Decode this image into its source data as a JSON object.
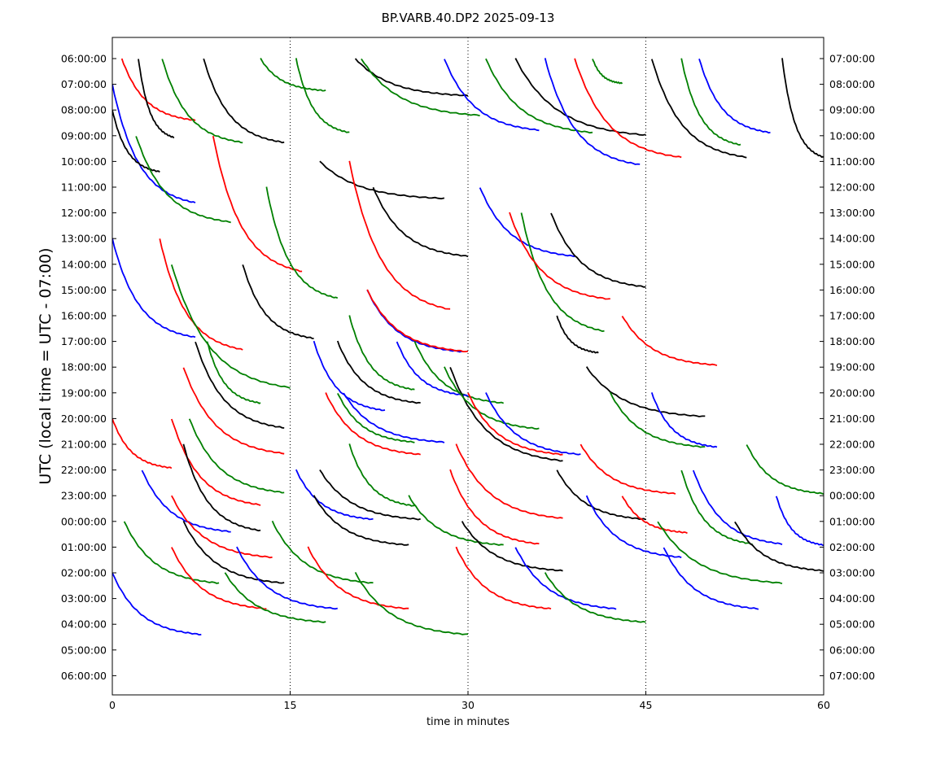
{
  "chart_data": {
    "type": "line",
    "title": "BP.VARB.40.DP2 2025-09-13",
    "xlabel": "time in minutes",
    "ylabel": "UTC (local time = UTC - 07:00)",
    "xlim": [
      0,
      60
    ],
    "xticks": [
      0,
      15,
      30,
      45,
      60
    ],
    "x_gridlines_dotted": [
      15,
      30,
      45
    ],
    "left_tick_labels": [
      "06:00:00",
      "07:00:00",
      "08:00:00",
      "09:00:00",
      "10:00:00",
      "11:00:00",
      "12:00:00",
      "13:00:00",
      "14:00:00",
      "15:00:00",
      "16:00:00",
      "17:00:00",
      "18:00:00",
      "19:00:00",
      "20:00:00",
      "21:00:00",
      "22:00:00",
      "23:00:00",
      "00:00:00",
      "01:00:00",
      "02:00:00",
      "03:00:00",
      "04:00:00",
      "05:00:00",
      "06:00:00"
    ],
    "right_tick_labels": [
      "07:00:00",
      "08:00:00",
      "09:00:00",
      "10:00:00",
      "11:00:00",
      "12:00:00",
      "13:00:00",
      "14:00:00",
      "15:00:00",
      "16:00:00",
      "17:00:00",
      "18:00:00",
      "19:00:00",
      "20:00:00",
      "21:00:00",
      "22:00:00",
      "23:00:00",
      "00:00:00",
      "01:00:00",
      "02:00:00",
      "03:00:00",
      "04:00:00",
      "05:00:00",
      "06:00:00",
      "07:00:00"
    ],
    "trace_colors": [
      "#000000",
      "#ff0000",
      "#0000ff",
      "#008000"
    ],
    "decay_segments": [
      {
        "row": 0,
        "color": "#ff0000",
        "x0": 0.8,
        "x1": 7.0,
        "drop": 2.5
      },
      {
        "row": 0,
        "color": "#000000",
        "x0": 2.2,
        "x1": 5.2,
        "drop": 3.2
      },
      {
        "row": 0,
        "color": "#008000",
        "x0": 4.2,
        "x1": 11.0,
        "drop": 3.4
      },
      {
        "row": 0,
        "color": "#000000",
        "x0": 7.7,
        "x1": 14.5,
        "drop": 3.4
      },
      {
        "row": 0,
        "color": "#008000",
        "x0": 12.5,
        "x1": 18.0,
        "drop": 1.3
      },
      {
        "row": 0,
        "color": "#008000",
        "x0": 15.5,
        "x1": 20.0,
        "drop": 3.0
      },
      {
        "row": 0,
        "color": "#000000",
        "x0": 20.5,
        "x1": 30.0,
        "drop": 1.5
      },
      {
        "row": 0,
        "color": "#008000",
        "x0": 21.0,
        "x1": 31.0,
        "drop": 2.3
      },
      {
        "row": 0,
        "color": "#0000ff",
        "x0": 28.0,
        "x1": 36.0,
        "drop": 2.9
      },
      {
        "row": 0,
        "color": "#008000",
        "x0": 31.5,
        "x1": 40.5,
        "drop": 3.0
      },
      {
        "row": 0,
        "color": "#000000",
        "x0": 34.0,
        "x1": 45.0,
        "drop": 3.1
      },
      {
        "row": 0,
        "color": "#0000ff",
        "x0": 36.5,
        "x1": 44.5,
        "drop": 4.3
      },
      {
        "row": 0,
        "color": "#ff0000",
        "x0": 39.0,
        "x1": 48.0,
        "drop": 4.0
      },
      {
        "row": 0,
        "color": "#008000",
        "x0": 40.5,
        "x1": 43.0,
        "drop": 1.0
      },
      {
        "row": 0,
        "color": "#000000",
        "x0": 45.5,
        "x1": 53.5,
        "drop": 4.0
      },
      {
        "row": 0,
        "color": "#0000ff",
        "x0": 49.5,
        "x1": 55.5,
        "drop": 3.0
      },
      {
        "row": 0,
        "color": "#008000",
        "x0": 48.0,
        "x1": 53.0,
        "drop": 3.5
      },
      {
        "row": 0,
        "color": "#000000",
        "x0": 56.5,
        "x1": 60.0,
        "drop": 4.0
      },
      {
        "row": 1,
        "color": "#0000ff",
        "x0": 0.0,
        "x1": 7.0,
        "drop": 4.8
      },
      {
        "row": 2,
        "color": "#000000",
        "x0": 0.0,
        "x1": 4.0,
        "drop": 2.5
      },
      {
        "row": 3,
        "color": "#008000",
        "x0": 2.0,
        "x1": 10.0,
        "drop": 3.5
      },
      {
        "row": 3,
        "color": "#ff0000",
        "x0": 8.5,
        "x1": 16.0,
        "drop": 5.5
      },
      {
        "row": 4,
        "color": "#000000",
        "x0": 17.5,
        "x1": 28.0,
        "drop": 1.5
      },
      {
        "row": 4,
        "color": "#ff0000",
        "x0": 20.0,
        "x1": 28.5,
        "drop": 6.0
      },
      {
        "row": 5,
        "color": "#008000",
        "x0": 13.0,
        "x1": 19.0,
        "drop": 4.5
      },
      {
        "row": 5,
        "color": "#000000",
        "x0": 22.0,
        "x1": 30.0,
        "drop": 2.8
      },
      {
        "row": 5,
        "color": "#0000ff",
        "x0": 31.0,
        "x1": 39.0,
        "drop": 2.8
      },
      {
        "row": 6,
        "color": "#000000",
        "x0": 37.0,
        "x1": 45.0,
        "drop": 3.0
      },
      {
        "row": 6,
        "color": "#008000",
        "x0": 34.5,
        "x1": 41.5,
        "drop": 4.8
      },
      {
        "row": 6,
        "color": "#ff0000",
        "x0": 33.5,
        "x1": 42.0,
        "drop": 3.5
      },
      {
        "row": 7,
        "color": "#0000ff",
        "x0": 0.0,
        "x1": 7.0,
        "drop": 4.0
      },
      {
        "row": 7,
        "color": "#ff0000",
        "x0": 4.0,
        "x1": 11.0,
        "drop": 4.5
      },
      {
        "row": 8,
        "color": "#008000",
        "x0": 5.0,
        "x1": 15.0,
        "drop": 5.0
      },
      {
        "row": 8,
        "color": "#000000",
        "x0": 11.0,
        "x1": 17.0,
        "drop": 3.0
      },
      {
        "row": 9,
        "color": "#0000ff",
        "x0": 21.5,
        "x1": 29.5,
        "drop": 2.5
      },
      {
        "row": 9,
        "color": "#ff0000",
        "x0": 21.5,
        "x1": 30.0,
        "drop": 2.5
      },
      {
        "row": 10,
        "color": "#008000",
        "x0": 20.0,
        "x1": 25.5,
        "drop": 3.0
      },
      {
        "row": 10,
        "color": "#000000",
        "x0": 37.5,
        "x1": 41.0,
        "drop": 1.5
      },
      {
        "row": 10,
        "color": "#ff0000",
        "x0": 43.0,
        "x1": 51.0,
        "drop": 2.0
      },
      {
        "row": 11,
        "color": "#000000",
        "x0": 7.0,
        "x1": 14.5,
        "drop": 3.5
      },
      {
        "row": 11,
        "color": "#008000",
        "x0": 8.0,
        "x1": 12.5,
        "drop": 2.5
      },
      {
        "row": 11,
        "color": "#0000ff",
        "x0": 17.0,
        "x1": 23.0,
        "drop": 2.8
      },
      {
        "row": 11,
        "color": "#000000",
        "x0": 19.0,
        "x1": 26.0,
        "drop": 2.5
      },
      {
        "row": 11,
        "color": "#008000",
        "x0": 25.5,
        "x1": 33.0,
        "drop": 2.5
      },
      {
        "row": 11,
        "color": "#0000ff",
        "x0": 24.0,
        "x1": 30.0,
        "drop": 2.2
      },
      {
        "row": 12,
        "color": "#ff0000",
        "x0": 6.0,
        "x1": 14.5,
        "drop": 3.5
      },
      {
        "row": 12,
        "color": "#000000",
        "x0": 28.5,
        "x1": 38.0,
        "drop": 3.8
      },
      {
        "row": 12,
        "color": "#008000",
        "x0": 28.0,
        "x1": 36.0,
        "drop": 2.5
      },
      {
        "row": 12,
        "color": "#000000",
        "x0": 40.0,
        "x1": 50.0,
        "drop": 2.0
      },
      {
        "row": 13,
        "color": "#ff0000",
        "x0": 18.0,
        "x1": 26.0,
        "drop": 2.5
      },
      {
        "row": 13,
        "color": "#0000ff",
        "x0": 19.5,
        "x1": 28.0,
        "drop": 2.0
      },
      {
        "row": 13,
        "color": "#008000",
        "x0": 19.0,
        "x1": 25.5,
        "drop": 2.0
      },
      {
        "row": 13,
        "color": "#ff0000",
        "x0": 30.0,
        "x1": 38.0,
        "drop": 2.5
      },
      {
        "row": 13,
        "color": "#0000ff",
        "x0": 31.5,
        "x1": 39.5,
        "drop": 2.5
      },
      {
        "row": 13,
        "color": "#008000",
        "x0": 42.0,
        "x1": 50.0,
        "drop": 2.2
      },
      {
        "row": 13,
        "color": "#0000ff",
        "x0": 45.5,
        "x1": 51.0,
        "drop": 2.2
      },
      {
        "row": 14,
        "color": "#ff0000",
        "x0": 0.0,
        "x1": 5.0,
        "drop": 2.0
      },
      {
        "row": 14,
        "color": "#ff0000",
        "x0": 5.0,
        "x1": 12.5,
        "drop": 3.5
      },
      {
        "row": 14,
        "color": "#008000",
        "x0": 6.5,
        "x1": 14.5,
        "drop": 3.0
      },
      {
        "row": 15,
        "color": "#000000",
        "x0": 6.0,
        "x1": 12.5,
        "drop": 3.5
      },
      {
        "row": 15,
        "color": "#008000",
        "x0": 20.0,
        "x1": 25.5,
        "drop": 2.5
      },
      {
        "row": 15,
        "color": "#ff0000",
        "x0": 29.0,
        "x1": 38.0,
        "drop": 3.0
      },
      {
        "row": 15,
        "color": "#ff0000",
        "x0": 39.5,
        "x1": 47.5,
        "drop": 2.0
      },
      {
        "row": 15,
        "color": "#008000",
        "x0": 53.5,
        "x1": 60.0,
        "drop": 2.0
      },
      {
        "row": 16,
        "color": "#0000ff",
        "x0": 2.5,
        "x1": 10.0,
        "drop": 2.5
      },
      {
        "row": 16,
        "color": "#000000",
        "x0": 17.5,
        "x1": 26.0,
        "drop": 2.0
      },
      {
        "row": 16,
        "color": "#0000ff",
        "x0": 15.5,
        "x1": 22.0,
        "drop": 2.0
      },
      {
        "row": 16,
        "color": "#ff0000",
        "x0": 28.5,
        "x1": 36.0,
        "drop": 3.0
      },
      {
        "row": 16,
        "color": "#000000",
        "x0": 37.5,
        "x1": 45.0,
        "drop": 2.0
      },
      {
        "row": 16,
        "color": "#0000ff",
        "x0": 49.0,
        "x1": 56.5,
        "drop": 3.0
      },
      {
        "row": 16,
        "color": "#008000",
        "x0": 48.0,
        "x1": 54.0,
        "drop": 3.0
      },
      {
        "row": 17,
        "color": "#ff0000",
        "x0": 5.0,
        "x1": 13.5,
        "drop": 2.5
      },
      {
        "row": 17,
        "color": "#000000",
        "x0": 17.0,
        "x1": 25.0,
        "drop": 2.0
      },
      {
        "row": 17,
        "color": "#008000",
        "x0": 25.0,
        "x1": 33.0,
        "drop": 2.0
      },
      {
        "row": 17,
        "color": "#0000ff",
        "x0": 40.0,
        "x1": 48.0,
        "drop": 2.5
      },
      {
        "row": 17,
        "color": "#ff0000",
        "x0": 43.0,
        "x1": 48.5,
        "drop": 1.5
      },
      {
        "row": 17,
        "color": "#0000ff",
        "x0": 56.0,
        "x1": 60.0,
        "drop": 2.0
      },
      {
        "row": 18,
        "color": "#008000",
        "x0": 1.0,
        "x1": 9.0,
        "drop": 2.5
      },
      {
        "row": 18,
        "color": "#000000",
        "x0": 6.0,
        "x1": 14.5,
        "drop": 2.5
      },
      {
        "row": 18,
        "color": "#008000",
        "x0": 13.5,
        "x1": 22.0,
        "drop": 2.5
      },
      {
        "row": 18,
        "color": "#000000",
        "x0": 29.5,
        "x1": 38.0,
        "drop": 2.0
      },
      {
        "row": 18,
        "color": "#008000",
        "x0": 46.0,
        "x1": 56.5,
        "drop": 2.5
      },
      {
        "row": 18,
        "color": "#000000",
        "x0": 52.5,
        "x1": 60.0,
        "drop": 2.0
      },
      {
        "row": 19,
        "color": "#ff0000",
        "x0": 5.0,
        "x1": 13.0,
        "drop": 2.5
      },
      {
        "row": 19,
        "color": "#0000ff",
        "x0": 10.5,
        "x1": 19.0,
        "drop": 2.5
      },
      {
        "row": 19,
        "color": "#ff0000",
        "x0": 16.5,
        "x1": 25.0,
        "drop": 2.5
      },
      {
        "row": 19,
        "color": "#ff0000",
        "x0": 29.0,
        "x1": 37.0,
        "drop": 2.5
      },
      {
        "row": 19,
        "color": "#0000ff",
        "x0": 34.0,
        "x1": 42.5,
        "drop": 2.5
      },
      {
        "row": 19,
        "color": "#0000ff",
        "x0": 46.5,
        "x1": 54.5,
        "drop": 2.5
      },
      {
        "row": 20,
        "color": "#0000ff",
        "x0": 0.0,
        "x1": 7.5,
        "drop": 2.5
      },
      {
        "row": 20,
        "color": "#008000",
        "x0": 9.5,
        "x1": 18.0,
        "drop": 2.0
      },
      {
        "row": 20,
        "color": "#008000",
        "x0": 20.5,
        "x1": 30.0,
        "drop": 2.5
      },
      {
        "row": 20,
        "color": "#008000",
        "x0": 36.5,
        "x1": 45.0,
        "drop": 2.0
      }
    ]
  }
}
